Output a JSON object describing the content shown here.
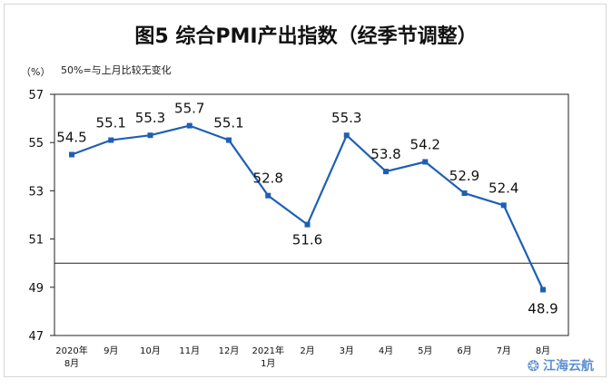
{
  "page": {
    "title": "图5 综合PMI产出指数（经季节调整）",
    "unit_label": "（%）",
    "note": "50%=与上月比较无变化",
    "watermark": "江海云航",
    "watermark_icon": "wechat-icon"
  },
  "chart_data": {
    "type": "line",
    "title": "图5 综合PMI产出指数（经季节调整）",
    "xlabel": "",
    "ylabel": "（%）",
    "categories": [
      [
        "2020年",
        "8月"
      ],
      [
        "9月"
      ],
      [
        "10月"
      ],
      [
        "11月"
      ],
      [
        "12月"
      ],
      [
        "2021年",
        "1月"
      ],
      [
        "2月"
      ],
      [
        "3月"
      ],
      [
        "4月"
      ],
      [
        "5月"
      ],
      [
        "6月"
      ],
      [
        "7月"
      ],
      [
        "8月"
      ]
    ],
    "series": [
      {
        "values": [
          54.5,
          55.1,
          55.3,
          55.7,
          55.1,
          52.8,
          51.6,
          55.3,
          53.8,
          54.2,
          52.9,
          52.4,
          48.9
        ]
      }
    ],
    "ylim": [
      47,
      57
    ],
    "yticks": [
      47,
      49,
      51,
      53,
      55,
      57
    ],
    "reference_line": 50,
    "grid": false,
    "color": "#1f5fb4"
  }
}
